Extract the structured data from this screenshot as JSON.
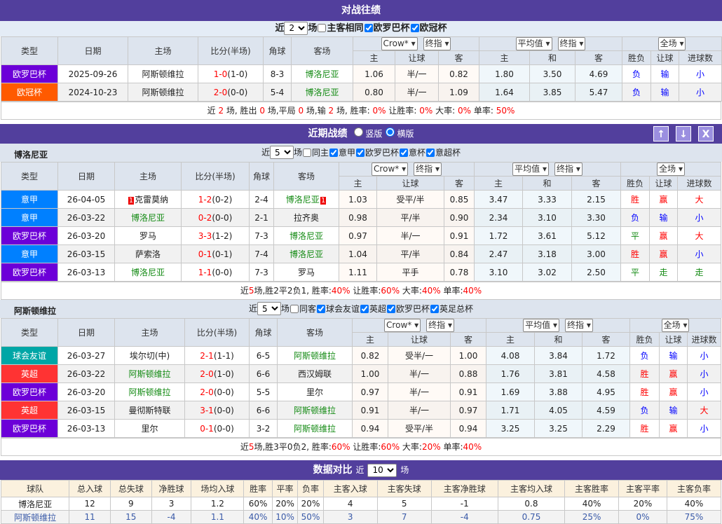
{
  "colors": {
    "欧罗巴杯": "#6c00d8",
    "欧冠杯": "#ff5a00",
    "意甲": "#0080ff",
    "球会友谊": "#00a6a6",
    "英超": "#ff3333",
    "header_bar": "#523f9d"
  },
  "h2h": {
    "title": "对战往绩",
    "recent_label": "近",
    "recent_value": "2",
    "unit": "场",
    "filters": [
      {
        "label": "主客相同",
        "checked": false,
        "bold": true
      },
      {
        "label": "欧罗巴杯",
        "checked": true
      },
      {
        "label": "欧冠杯",
        "checked": true
      }
    ],
    "headers": [
      "类型",
      "日期",
      "主场",
      "比分(半场)",
      "角球",
      "客场"
    ],
    "sel1": [
      "Crow*",
      "终指"
    ],
    "sel2": [
      "平均值",
      "终指"
    ],
    "sel3": "全场",
    "sub": [
      "主",
      "让球",
      "客",
      "主",
      "和",
      "客",
      "胜负",
      "让球",
      "进球数"
    ],
    "rows": [
      {
        "type": "欧罗巴杯",
        "date": "2025-09-26",
        "home": "阿斯顿维拉",
        "score": "1-0",
        "half": "(1-0)",
        "corner": "8-3",
        "away": "博洛尼亚",
        "away_g": true,
        "o": [
          "1.06",
          "半/一",
          "0.82"
        ],
        "e": [
          "1.80",
          "3.50",
          "4.69"
        ],
        "res": [
          "负",
          "输",
          "小"
        ]
      },
      {
        "type": "欧冠杯",
        "date": "2024-10-23",
        "home": "阿斯顿维拉",
        "score": "2-0",
        "half": "(0-0)",
        "corner": "5-4",
        "away": "博洛尼亚",
        "away_g": true,
        "o": [
          "0.80",
          "半/一",
          "1.09"
        ],
        "e": [
          "1.64",
          "3.85",
          "5.47"
        ],
        "res": [
          "负",
          "输",
          "小"
        ]
      }
    ],
    "summary": [
      [
        "近 ",
        ""
      ],
      [
        "2",
        "r"
      ],
      [
        " 场, 胜出 ",
        ""
      ],
      [
        "0",
        "r"
      ],
      [
        " 场,平局 ",
        ""
      ],
      [
        "0",
        "r"
      ],
      [
        " 场,输 ",
        ""
      ],
      [
        "2",
        "r"
      ],
      [
        " 场, 胜率: ",
        ""
      ],
      [
        "0%",
        "r"
      ],
      [
        " 让胜率: ",
        ""
      ],
      [
        "0%",
        "r"
      ],
      [
        " 大率: ",
        ""
      ],
      [
        "0%",
        "r"
      ],
      [
        " 单率: ",
        ""
      ],
      [
        "50%",
        "r"
      ]
    ]
  },
  "recent": {
    "title": "近期战绩",
    "radio": [
      {
        "label": "竖版",
        "checked": false
      },
      {
        "label": "横版",
        "checked": true
      }
    ],
    "buttons": [
      "↑",
      "↓",
      "X"
    ]
  },
  "team1": {
    "name": "博洛尼亚",
    "recent_label": "近",
    "recent_value": "5",
    "unit": "场",
    "filters": [
      {
        "label": "同主",
        "checked": false
      },
      {
        "label": "意甲",
        "checked": true
      },
      {
        "label": "欧罗巴杯",
        "checked": true
      },
      {
        "label": "意杯",
        "checked": true
      },
      {
        "label": "意超杯",
        "checked": true
      }
    ],
    "rows": [
      {
        "type": "意甲",
        "date": "26-04-05",
        "home": "克雷莫纳",
        "home_card": "1",
        "score": "1-2",
        "half": "(0-2)",
        "corner": "2-4",
        "away": "博洛尼亚",
        "away_card": "1",
        "away_g": true,
        "o": [
          "1.03",
          "受平/半",
          "0.85"
        ],
        "e": [
          "3.47",
          "3.33",
          "2.15"
        ],
        "res": [
          "胜",
          "赢",
          "大"
        ]
      },
      {
        "type": "意甲",
        "date": "26-03-22",
        "home": "博洛尼亚",
        "home_g": true,
        "score": "0-2",
        "half": "(0-0)",
        "corner": "2-1",
        "away": "拉齐奥",
        "o": [
          "0.98",
          "平/半",
          "0.90"
        ],
        "e": [
          "2.34",
          "3.10",
          "3.30"
        ],
        "res": [
          "负",
          "输",
          "小"
        ]
      },
      {
        "type": "欧罗巴杯",
        "date": "26-03-20",
        "home": "罗马",
        "score": "3-3",
        "half": "(1-2)",
        "corner": "7-3",
        "away": "博洛尼亚",
        "away_g": true,
        "o": [
          "0.97",
          "半/一",
          "0.91"
        ],
        "e": [
          "1.72",
          "3.61",
          "5.12"
        ],
        "res": [
          "平",
          "赢",
          "大"
        ]
      },
      {
        "type": "意甲",
        "date": "26-03-15",
        "home": "萨索洛",
        "score": "0-1",
        "half": "(0-1)",
        "corner": "7-4",
        "away": "博洛尼亚",
        "away_g": true,
        "o": [
          "1.04",
          "平/半",
          "0.84"
        ],
        "e": [
          "2.47",
          "3.18",
          "3.00"
        ],
        "res": [
          "胜",
          "赢",
          "小"
        ]
      },
      {
        "type": "欧罗巴杯",
        "date": "26-03-13",
        "home": "博洛尼亚",
        "home_g": true,
        "score": "1-1",
        "half": "(0-0)",
        "corner": "7-3",
        "away": "罗马",
        "o": [
          "1.11",
          "平手",
          "0.78"
        ],
        "e": [
          "3.10",
          "3.02",
          "2.50"
        ],
        "res": [
          "平",
          "走",
          "走"
        ]
      }
    ],
    "summary": [
      [
        "近",
        ""
      ],
      [
        "5",
        "r"
      ],
      [
        "场,胜2平2负1, 胜率:",
        ""
      ],
      [
        "40%",
        "r"
      ],
      [
        " 让胜率:",
        ""
      ],
      [
        "60%",
        "r"
      ],
      [
        " 大率:",
        ""
      ],
      [
        "40%",
        "r"
      ],
      [
        " 单率:",
        ""
      ],
      [
        "40%",
        "r"
      ]
    ]
  },
  "team2": {
    "name": "阿斯顿维拉",
    "recent_label": "近",
    "recent_value": "5",
    "unit": "场",
    "filters": [
      {
        "label": "同客",
        "checked": false
      },
      {
        "label": "球会友谊",
        "checked": true
      },
      {
        "label": "英超",
        "checked": true
      },
      {
        "label": "欧罗巴杯",
        "checked": true
      },
      {
        "label": "英足总杯",
        "checked": true
      }
    ],
    "rows": [
      {
        "type": "球会友谊",
        "date": "26-03-27",
        "home": "埃尔切(中)",
        "score": "2-1",
        "half": "(1-1)",
        "corner": "6-5",
        "away": "阿斯顿维拉",
        "away_g": true,
        "o": [
          "0.82",
          "受半/一",
          "1.00"
        ],
        "e": [
          "4.08",
          "3.84",
          "1.72"
        ],
        "res": [
          "负",
          "输",
          "小"
        ]
      },
      {
        "type": "英超",
        "date": "26-03-22",
        "home": "阿斯顿维拉",
        "home_g": true,
        "score": "2-0",
        "half": "(1-0)",
        "corner": "6-6",
        "away": "西汉姆联",
        "o": [
          "1.00",
          "半/一",
          "0.88"
        ],
        "e": [
          "1.76",
          "3.81",
          "4.58"
        ],
        "res": [
          "胜",
          "赢",
          "小"
        ]
      },
      {
        "type": "欧罗巴杯",
        "date": "26-03-20",
        "home": "阿斯顿维拉",
        "home_g": true,
        "score": "2-0",
        "half": "(0-0)",
        "corner": "5-5",
        "away": "里尔",
        "o": [
          "0.97",
          "半/一",
          "0.91"
        ],
        "e": [
          "1.69",
          "3.88",
          "4.95"
        ],
        "res": [
          "胜",
          "赢",
          "小"
        ]
      },
      {
        "type": "英超",
        "date": "26-03-15",
        "home": "曼彻斯特联",
        "score": "3-1",
        "half": "(0-0)",
        "corner": "6-6",
        "away": "阿斯顿维拉",
        "away_g": true,
        "o": [
          "0.91",
          "半/一",
          "0.97"
        ],
        "e": [
          "1.71",
          "4.05",
          "4.59"
        ],
        "res": [
          "负",
          "输",
          "大"
        ]
      },
      {
        "type": "欧罗巴杯",
        "date": "26-03-13",
        "home": "里尔",
        "score": "0-1",
        "half": "(0-0)",
        "corner": "3-2",
        "away": "阿斯顿维拉",
        "away_g": true,
        "o": [
          "0.94",
          "受平/半",
          "0.94"
        ],
        "e": [
          "3.25",
          "3.25",
          "2.29"
        ],
        "res": [
          "胜",
          "赢",
          "小"
        ]
      }
    ],
    "summary": [
      [
        "近",
        ""
      ],
      [
        "5",
        "r"
      ],
      [
        "场,胜3平0负2, 胜率:",
        ""
      ],
      [
        "60%",
        "r"
      ],
      [
        " 让胜率:",
        ""
      ],
      [
        "60%",
        "r"
      ],
      [
        " 大率:",
        ""
      ],
      [
        "20%",
        "r"
      ],
      [
        " 单率:",
        ""
      ],
      [
        "40%",
        "r"
      ]
    ]
  },
  "compare": {
    "title": "数据对比",
    "recent_label": "近",
    "recent_value": "10",
    "unit": "场",
    "headers": [
      "球队",
      "总入球",
      "总失球",
      "净胜球",
      "场均入球",
      "胜率",
      "平率",
      "负率",
      "主客入球",
      "主客失球",
      "主客净胜球",
      "主客均入球",
      "主客胜率",
      "主客平率",
      "主客负率"
    ],
    "rows": [
      [
        "博洛尼亚",
        "12",
        "9",
        "3",
        "1.2",
        "60%",
        "20%",
        "20%",
        "4",
        "5",
        "-1",
        "0.8",
        "40%",
        "20%",
        "40%"
      ],
      [
        "阿斯顿维拉",
        "11",
        "15",
        "-4",
        "1.1",
        "40%",
        "10%",
        "50%",
        "3",
        "7",
        "-4",
        "0.75",
        "25%",
        "0%",
        "75%"
      ]
    ]
  }
}
